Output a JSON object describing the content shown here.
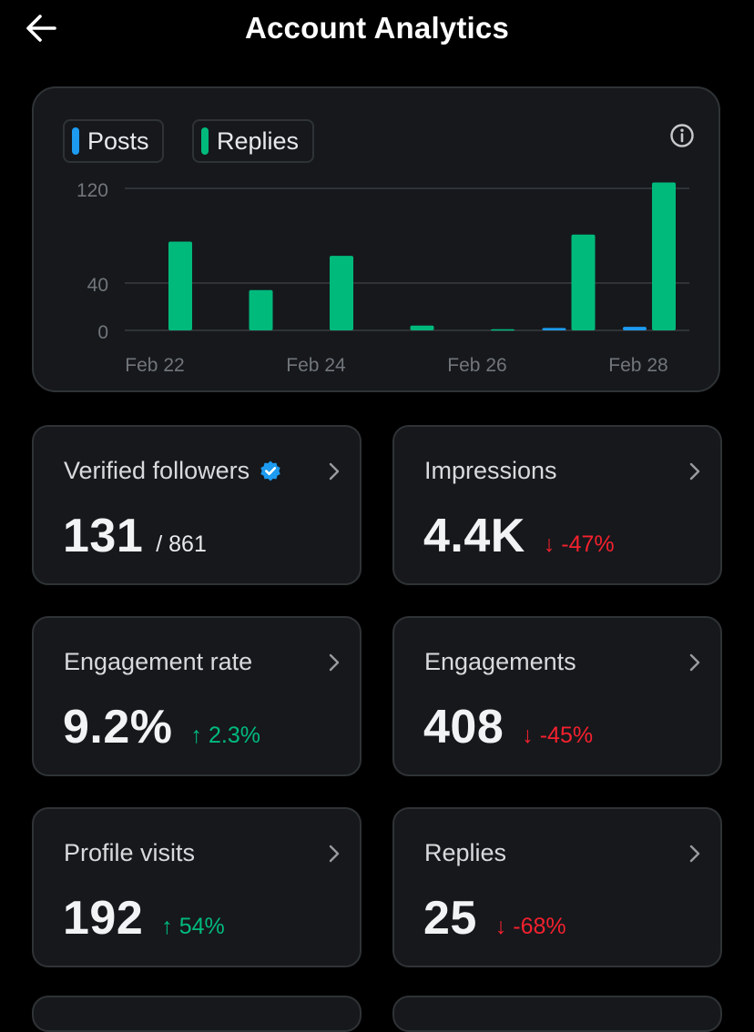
{
  "header": {
    "title": "Account Analytics",
    "back_icon": "arrow-left-icon"
  },
  "legend": {
    "posts_label": "Posts",
    "replies_label": "Replies",
    "info_icon": "info-icon"
  },
  "colors": {
    "posts": "#1d9bf0",
    "replies": "#00ba7c",
    "down": "#f4212e",
    "up": "#00ba7c"
  },
  "chart_data": {
    "type": "bar",
    "categories": [
      "Feb 22",
      "Feb 23",
      "Feb 24",
      "Feb 25",
      "Feb 26",
      "Feb 27",
      "Feb 28"
    ],
    "x_tick_labels": [
      "Feb 22",
      "Feb 24",
      "Feb 26",
      "Feb 28"
    ],
    "y_ticks": [
      0,
      40,
      120
    ],
    "ylim": [
      0,
      120
    ],
    "series": [
      {
        "name": "Posts",
        "values": [
          0,
          0,
          0,
          0,
          0,
          2,
          3
        ]
      },
      {
        "name": "Replies",
        "values": [
          75,
          34,
          63,
          4,
          1,
          81,
          125
        ]
      }
    ],
    "title": "",
    "xlabel": "",
    "ylabel": "",
    "grid": true
  },
  "stats": [
    {
      "label": "Verified followers",
      "value": "131",
      "sub": "/ 861",
      "change": "",
      "direction": "",
      "verified": true
    },
    {
      "label": "Impressions",
      "value": "4.4K",
      "change": "↓ -47%",
      "direction": "down"
    },
    {
      "label": "Engagement rate",
      "value": "9.2%",
      "change": "↑ 2.3%",
      "direction": "up"
    },
    {
      "label": "Engagements",
      "value": "408",
      "change": "↓ -45%",
      "direction": "down"
    },
    {
      "label": "Profile visits",
      "value": "192",
      "change": "↑ 54%",
      "direction": "up"
    },
    {
      "label": "Replies",
      "value": "25",
      "change": "↓ -68%",
      "direction": "down"
    }
  ]
}
